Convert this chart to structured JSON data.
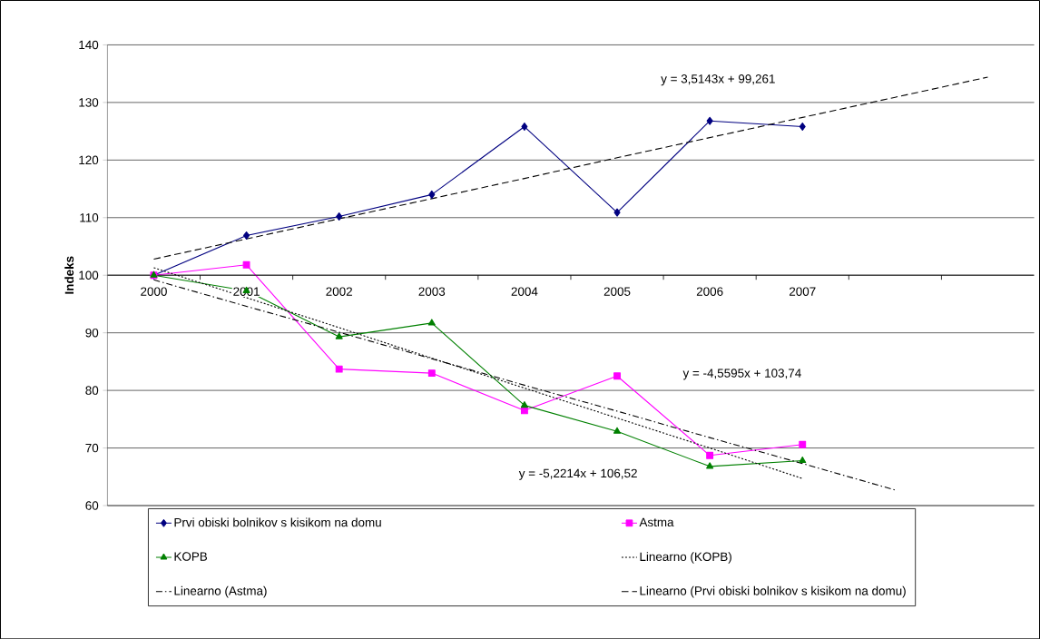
{
  "chart_data": {
    "type": "line",
    "ylabel": "Indeks",
    "categories": [
      "2000",
      "2001",
      "2002",
      "2003",
      "2004",
      "2005",
      "2006",
      "2007",
      null,
      null
    ],
    "ylim": [
      60,
      140
    ],
    "yticks": [
      60,
      70,
      80,
      90,
      100,
      110,
      120,
      130,
      140
    ],
    "grid": "y",
    "legend": "bottom",
    "annotations": [
      "y = 3,5143x + 99,261",
      "y = -4,5595x + 103,74",
      "y = -5,2214x + 106,52"
    ],
    "series": [
      {
        "name": "Prvi obiski bolnikov s kisikom na domu",
        "color": "#000080",
        "marker": "diamond",
        "line_style": "solid",
        "values": [
          100,
          106.9,
          110.2,
          114.0,
          125.8,
          110.9,
          126.8,
          125.8,
          null,
          null
        ]
      },
      {
        "name": "Astma",
        "color": "#ff00ff",
        "marker": "square",
        "line_style": "solid",
        "values": [
          100,
          101.8,
          83.7,
          83.0,
          76.5,
          82.5,
          68.7,
          70.6,
          null,
          null
        ]
      },
      {
        "name": "KOPB",
        "color": "#008000",
        "marker": "triangle",
        "line_style": "solid",
        "values": [
          100,
          97.3,
          89.3,
          91.7,
          77.4,
          72.9,
          66.8,
          67.8,
          null,
          null
        ]
      },
      {
        "name": "Linearno (KOPB)",
        "color": "#000000",
        "marker": "none",
        "line_style": "dotted",
        "values": [
          101.3,
          96.1,
          90.9,
          85.6,
          80.4,
          75.2,
          70.0,
          64.7,
          null,
          null
        ]
      },
      {
        "name": "Linearno (Astma)",
        "color": "#000000",
        "marker": "none",
        "line_style": "dashdot",
        "values": [
          99.2,
          94.6,
          90.1,
          85.5,
          80.9,
          76.4,
          71.8,
          67.3,
          62.7,
          null
        ]
      },
      {
        "name": "Linearno (Prvi obiski bolnikov s kisikom na domu)",
        "color": "#000000",
        "marker": "none",
        "line_style": "dashed",
        "values": [
          102.8,
          106.3,
          109.8,
          113.3,
          116.8,
          120.4,
          123.9,
          127.4,
          130.9,
          134.4
        ]
      }
    ]
  }
}
